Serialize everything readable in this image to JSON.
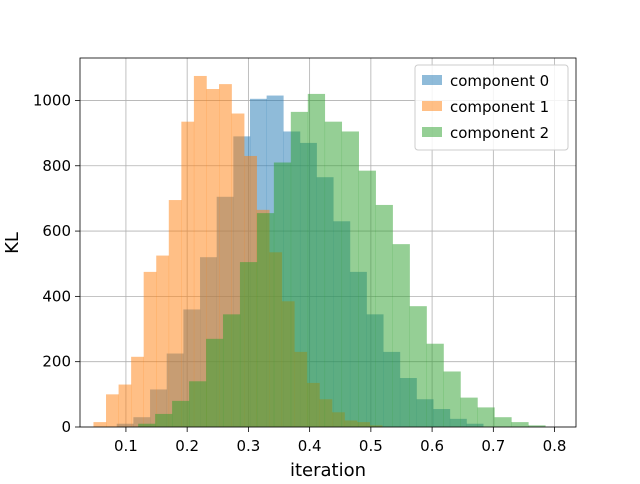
{
  "chart_data": {
    "type": "histogram",
    "title": "",
    "xlabel": "iteration",
    "ylabel": "KL",
    "xlim": [
      0.025,
      0.835
    ],
    "ylim": [
      0,
      1130
    ],
    "xticks": [
      "0.1",
      "0.2",
      "0.3",
      "0.4",
      "0.5",
      "0.6",
      "0.7",
      "0.8"
    ],
    "yticks": [
      "0",
      "200",
      "400",
      "600",
      "800",
      "1000"
    ],
    "grid": true,
    "legend_position": "top-right",
    "series": [
      {
        "name": "component 0",
        "color": "#1f77b4",
        "opacity": 0.5,
        "x_start": 0.085,
        "bin_width": 0.0272,
        "counts": [
          10,
          30,
          115,
          225,
          360,
          520,
          705,
          890,
          1005,
          1015,
          905,
          870,
          765,
          630,
          475,
          345,
          230,
          150,
          85,
          55,
          25,
          10
        ]
      },
      {
        "name": "component 1",
        "color": "#ff7f0e",
        "opacity": 0.5,
        "x_start": 0.047,
        "bin_width": 0.0205,
        "counts": [
          15,
          100,
          130,
          215,
          475,
          525,
          695,
          935,
          1075,
          1035,
          1050,
          960,
          830,
          665,
          535,
          385,
          230,
          135,
          85,
          45,
          20,
          15,
          5
        ]
      },
      {
        "name": "component 2",
        "color": "#2ca02c",
        "opacity": 0.5,
        "x_start": 0.12,
        "bin_width": 0.0277,
        "counts": [
          10,
          40,
          80,
          140,
          270,
          345,
          505,
          655,
          810,
          965,
          1020,
          935,
          905,
          785,
          680,
          560,
          370,
          255,
          170,
          90,
          60,
          30,
          15,
          5
        ]
      }
    ]
  }
}
